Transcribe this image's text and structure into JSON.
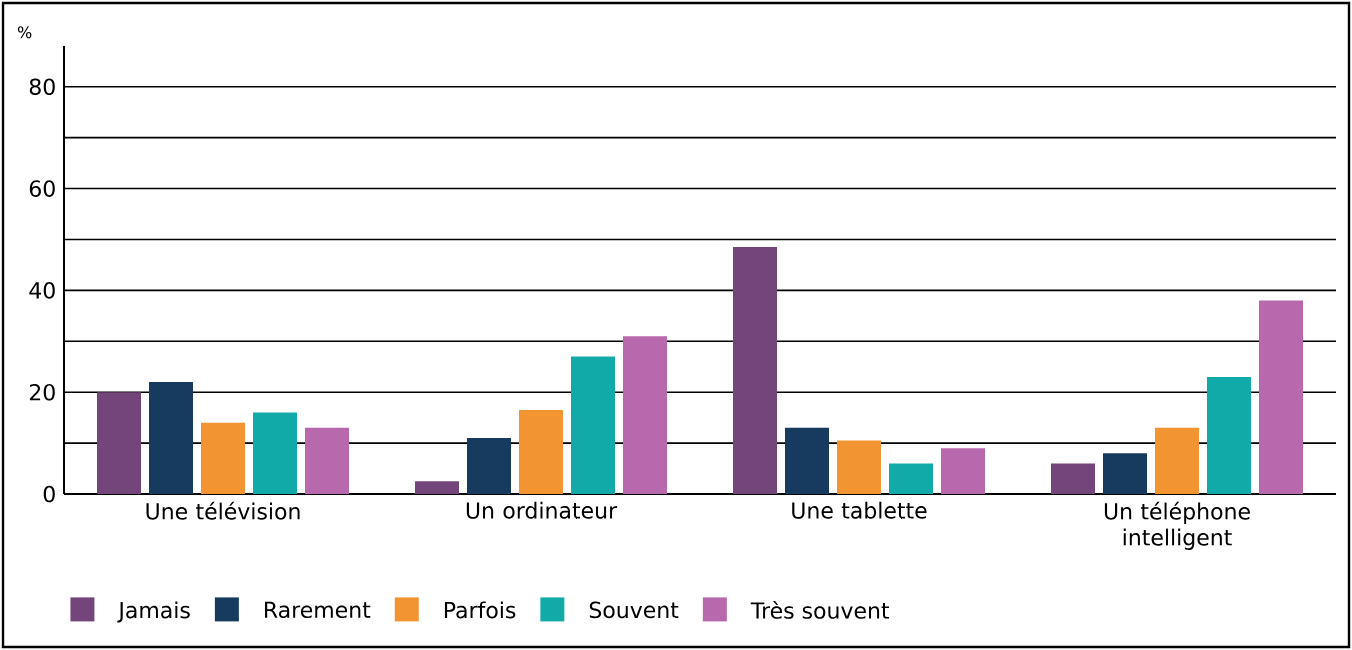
{
  "chart_data": {
    "type": "bar",
    "ylabel": "%",
    "categories": [
      "Une télévision",
      "Un ordinateur",
      "Une tablette",
      "Un téléphone intelligent"
    ],
    "series": [
      {
        "name": "Jamais",
        "color": "#74457a",
        "values": [
          20,
          2.5,
          48.5,
          6
        ]
      },
      {
        "name": "Rarement",
        "color": "#163b5e",
        "values": [
          22,
          11,
          13,
          8
        ]
      },
      {
        "name": "Parfois",
        "color": "#f39433",
        "values": [
          14,
          16.5,
          10.5,
          13
        ]
      },
      {
        "name": "Souvent",
        "color": "#12aaa8",
        "values": [
          16,
          27,
          6,
          23
        ]
      },
      {
        "name": "Très souvent",
        "color": "#b869ae",
        "values": [
          13,
          31,
          9,
          38
        ]
      }
    ],
    "ylim": [
      0,
      88
    ],
    "yticks": [
      0,
      {
        "value": 10,
        "label": null
      },
      20,
      {
        "value": 30,
        "label": null
      },
      40,
      {
        "value": 50,
        "label": null
      },
      60,
      {
        "value": 70,
        "label": null
      },
      80
    ],
    "grid": "y",
    "legend": "bottom"
  }
}
